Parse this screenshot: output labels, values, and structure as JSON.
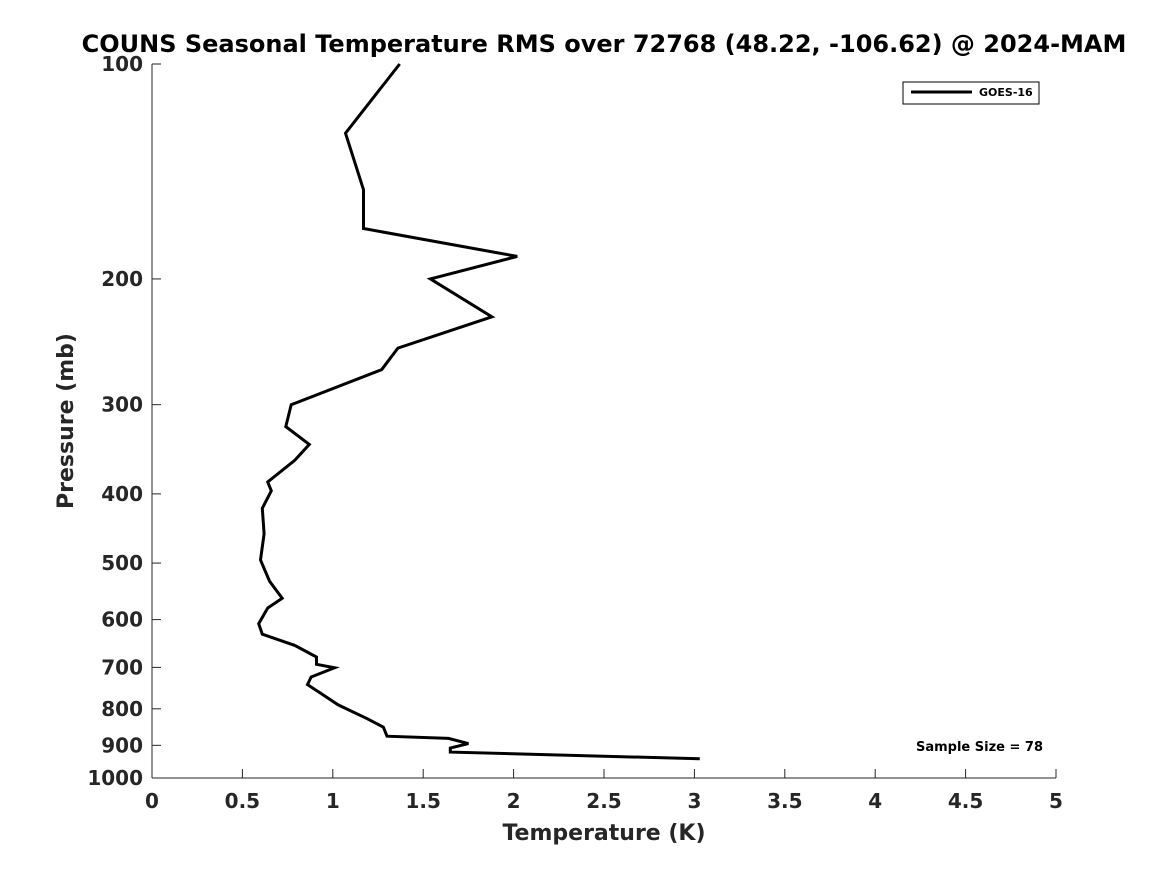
{
  "chart_data": {
    "type": "line",
    "title": "COUNS Seasonal Temperature RMS over 72768 (48.22, -106.62) @ 2024-MAM",
    "xlabel": "Temperature (K)",
    "ylabel": "Pressure (mb)",
    "xlim": [
      0,
      5
    ],
    "ylim": [
      100,
      1000
    ],
    "y_scale": "log",
    "y_reversed": true,
    "grid": false,
    "legend_position": "top-right",
    "x_ticks": [
      "0",
      "0.5",
      "1",
      "1.5",
      "2",
      "2.5",
      "3",
      "3.5",
      "4",
      "4.5",
      "5"
    ],
    "y_ticks": [
      "100",
      "200",
      "300",
      "400",
      "500",
      "600",
      "700",
      "800",
      "900",
      "1000"
    ],
    "series": [
      {
        "name": "GOES-16",
        "color": "#000000",
        "points": [
          [
            1.37,
            100
          ],
          [
            1.07,
            125
          ],
          [
            1.17,
            150
          ],
          [
            1.17,
            170
          ],
          [
            2.02,
            186
          ],
          [
            1.54,
            200
          ],
          [
            1.88,
            226
          ],
          [
            1.36,
            250
          ],
          [
            1.27,
            268
          ],
          [
            0.77,
            300
          ],
          [
            0.74,
            322
          ],
          [
            0.87,
            341
          ],
          [
            0.79,
            359
          ],
          [
            0.64,
            385
          ],
          [
            0.66,
            396
          ],
          [
            0.61,
            419
          ],
          [
            0.62,
            455
          ],
          [
            0.6,
            495
          ],
          [
            0.65,
            530
          ],
          [
            0.72,
            560
          ],
          [
            0.64,
            578
          ],
          [
            0.59,
            608
          ],
          [
            0.61,
            629
          ],
          [
            0.79,
            652
          ],
          [
            0.91,
            677
          ],
          [
            0.91,
            693
          ],
          [
            1.01,
            701
          ],
          [
            0.88,
            722
          ],
          [
            0.86,
            740
          ],
          [
            0.93,
            760
          ],
          [
            1.03,
            790
          ],
          [
            1.19,
            826
          ],
          [
            1.28,
            849
          ],
          [
            1.3,
            874
          ],
          [
            1.64,
            880
          ],
          [
            1.75,
            895
          ],
          [
            1.65,
            908
          ],
          [
            1.65,
            920
          ],
          [
            3.03,
            940
          ]
        ]
      }
    ],
    "annotations": [
      "Sample Size = 78"
    ]
  }
}
